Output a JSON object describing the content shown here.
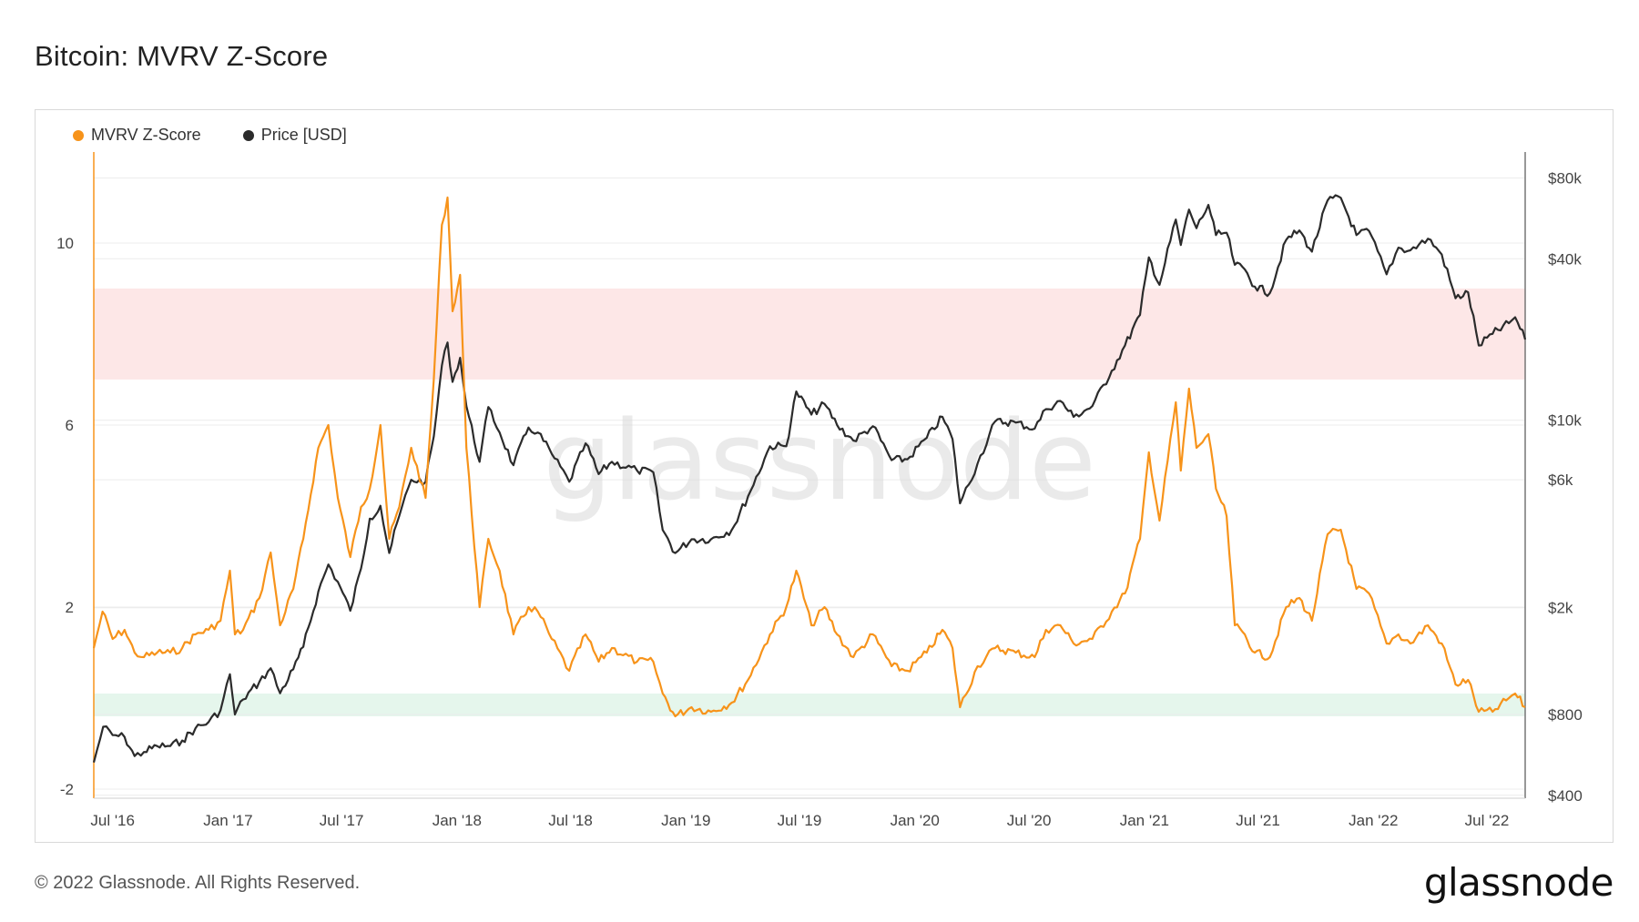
{
  "page": {
    "title": "Bitcoin: MVRV Z-Score",
    "copyright": "© 2022 Glassnode. All Rights Reserved.",
    "brand": "glassnode",
    "watermark": "glassnode"
  },
  "colors": {
    "mvrv": "#f7931a",
    "price": "#2b2b2b",
    "red_band": "#fde7e7",
    "green_band": "#e5f6ec",
    "grid": "#ececec"
  },
  "chart_data": {
    "type": "line",
    "title": "Bitcoin: MVRV Z-Score",
    "legend": {
      "placement": "top-left"
    },
    "grid": true,
    "x_range": [
      "2016-06-01",
      "2022-08-31"
    ],
    "x_ticks": [
      {
        "date": "2016-07-01",
        "label": "Jul '16"
      },
      {
        "date": "2017-01-01",
        "label": "Jan '17"
      },
      {
        "date": "2017-07-01",
        "label": "Jul '17"
      },
      {
        "date": "2018-01-01",
        "label": "Jan '18"
      },
      {
        "date": "2018-07-01",
        "label": "Jul '18"
      },
      {
        "date": "2019-01-01",
        "label": "Jan '19"
      },
      {
        "date": "2019-07-01",
        "label": "Jul '19"
      },
      {
        "date": "2020-01-01",
        "label": "Jan '20"
      },
      {
        "date": "2020-07-01",
        "label": "Jul '20"
      },
      {
        "date": "2021-01-01",
        "label": "Jan '21"
      },
      {
        "date": "2021-07-01",
        "label": "Jul '21"
      },
      {
        "date": "2022-01-01",
        "label": "Jan '22"
      },
      {
        "date": "2022-07-01",
        "label": "Jul '22"
      }
    ],
    "y_left": {
      "range": [
        -2.2,
        12
      ],
      "ticks": [
        {
          "v": -2,
          "label": "-2"
        },
        {
          "v": 2,
          "label": "2"
        },
        {
          "v": 6,
          "label": "6"
        },
        {
          "v": 10,
          "label": "10"
        }
      ]
    },
    "y_right": {
      "scale": "log",
      "range": [
        390,
        100000
      ],
      "ticks": [
        {
          "v": 400,
          "label": "$400"
        },
        {
          "v": 800,
          "label": "$800"
        },
        {
          "v": 2000,
          "label": "$2k"
        },
        {
          "v": 6000,
          "label": "$6k"
        },
        {
          "v": 10000,
          "label": "$10k"
        },
        {
          "v": 40000,
          "label": "$40k"
        },
        {
          "v": 80000,
          "label": "$80k"
        }
      ]
    },
    "bands": [
      {
        "axis": "left",
        "from": 7,
        "to": 9
      },
      {
        "axis": "left",
        "from": -0.4,
        "to": 0.1
      }
    ],
    "series": [
      {
        "name": "MVRV Z-Score",
        "axis": "left",
        "color": "#f7931a",
        "points": [
          [
            "2016-06-01",
            1.1
          ],
          [
            "2016-06-15",
            1.9
          ],
          [
            "2016-07-01",
            1.3
          ],
          [
            "2016-07-20",
            1.5
          ],
          [
            "2016-08-05",
            1.0
          ],
          [
            "2016-08-20",
            0.9
          ],
          [
            "2016-09-10",
            1.0
          ],
          [
            "2016-10-01",
            1.0
          ],
          [
            "2016-10-20",
            1.1
          ],
          [
            "2016-11-10",
            1.4
          ],
          [
            "2016-12-01",
            1.5
          ],
          [
            "2016-12-20",
            1.7
          ],
          [
            "2017-01-04",
            2.8
          ],
          [
            "2017-01-12",
            1.4
          ],
          [
            "2017-01-25",
            1.5
          ],
          [
            "2017-02-20",
            2.2
          ],
          [
            "2017-03-10",
            3.2
          ],
          [
            "2017-03-25",
            1.6
          ],
          [
            "2017-04-15",
            2.4
          ],
          [
            "2017-05-01",
            3.5
          ],
          [
            "2017-05-25",
            5.5
          ],
          [
            "2017-06-10",
            6.0
          ],
          [
            "2017-06-25",
            4.4
          ],
          [
            "2017-07-15",
            3.1
          ],
          [
            "2017-08-01",
            4.2
          ],
          [
            "2017-08-15",
            4.6
          ],
          [
            "2017-09-01",
            6.0
          ],
          [
            "2017-09-15",
            3.5
          ],
          [
            "2017-10-01",
            4.2
          ],
          [
            "2017-10-20",
            5.5
          ],
          [
            "2017-11-12",
            4.4
          ],
          [
            "2017-11-25",
            7.0
          ],
          [
            "2017-12-08",
            10.4
          ],
          [
            "2017-12-17",
            11.0
          ],
          [
            "2017-12-25",
            8.5
          ],
          [
            "2018-01-06",
            9.3
          ],
          [
            "2018-01-16",
            5.5
          ],
          [
            "2018-02-06",
            2.0
          ],
          [
            "2018-02-20",
            3.5
          ],
          [
            "2018-03-10",
            2.8
          ],
          [
            "2018-04-01",
            1.4
          ],
          [
            "2018-04-25",
            2.0
          ],
          [
            "2018-05-10",
            1.9
          ],
          [
            "2018-06-01",
            1.3
          ],
          [
            "2018-06-29",
            0.6
          ],
          [
            "2018-07-25",
            1.4
          ],
          [
            "2018-08-15",
            0.8
          ],
          [
            "2018-09-05",
            1.1
          ],
          [
            "2018-10-15",
            0.8
          ],
          [
            "2018-11-10",
            0.8
          ],
          [
            "2018-11-25",
            0.1
          ],
          [
            "2018-12-15",
            -0.4
          ],
          [
            "2019-01-10",
            -0.2
          ],
          [
            "2019-02-10",
            -0.3
          ],
          [
            "2019-03-15",
            -0.1
          ],
          [
            "2019-04-10",
            0.4
          ],
          [
            "2019-05-15",
            1.4
          ],
          [
            "2019-06-10",
            2.0
          ],
          [
            "2019-06-26",
            2.8
          ],
          [
            "2019-07-20",
            1.6
          ],
          [
            "2019-08-10",
            2.0
          ],
          [
            "2019-08-30",
            1.4
          ],
          [
            "2019-09-25",
            0.9
          ],
          [
            "2019-10-26",
            1.4
          ],
          [
            "2019-11-25",
            0.7
          ],
          [
            "2019-12-20",
            0.6
          ],
          [
            "2020-01-20",
            1.0
          ],
          [
            "2020-02-14",
            1.5
          ],
          [
            "2020-03-01",
            1.1
          ],
          [
            "2020-03-13",
            -0.2
          ],
          [
            "2020-04-10",
            0.7
          ],
          [
            "2020-05-08",
            1.1
          ],
          [
            "2020-06-10",
            1.0
          ],
          [
            "2020-07-10",
            0.9
          ],
          [
            "2020-07-28",
            1.5
          ],
          [
            "2020-08-20",
            1.6
          ],
          [
            "2020-09-10",
            1.2
          ],
          [
            "2020-10-10",
            1.3
          ],
          [
            "2020-11-10",
            1.9
          ],
          [
            "2020-12-01",
            2.3
          ],
          [
            "2020-12-25",
            3.5
          ],
          [
            "2021-01-08",
            5.4
          ],
          [
            "2021-01-25",
            3.9
          ],
          [
            "2021-02-20",
            6.5
          ],
          [
            "2021-02-28",
            5.0
          ],
          [
            "2021-03-13",
            6.8
          ],
          [
            "2021-03-25",
            5.5
          ],
          [
            "2021-04-13",
            5.8
          ],
          [
            "2021-04-25",
            4.6
          ],
          [
            "2021-05-12",
            4.0
          ],
          [
            "2021-05-25",
            1.6
          ],
          [
            "2021-06-10",
            1.4
          ],
          [
            "2021-06-26",
            1.0
          ],
          [
            "2021-07-20",
            0.9
          ],
          [
            "2021-08-15",
            2.0
          ],
          [
            "2021-09-05",
            2.2
          ],
          [
            "2021-09-25",
            1.7
          ],
          [
            "2021-10-20",
            3.6
          ],
          [
            "2021-11-10",
            3.7
          ],
          [
            "2021-12-05",
            2.4
          ],
          [
            "2021-12-25",
            2.3
          ],
          [
            "2022-01-22",
            1.2
          ],
          [
            "2022-02-10",
            1.4
          ],
          [
            "2022-03-01",
            1.2
          ],
          [
            "2022-03-29",
            1.6
          ],
          [
            "2022-04-20",
            1.2
          ],
          [
            "2022-05-12",
            0.3
          ],
          [
            "2022-06-01",
            0.4
          ],
          [
            "2022-06-18",
            -0.3
          ],
          [
            "2022-07-10",
            -0.3
          ],
          [
            "2022-08-05",
            0.0
          ],
          [
            "2022-08-15",
            0.1
          ],
          [
            "2022-08-31",
            -0.2
          ]
        ]
      },
      {
        "name": "Price [USD]",
        "axis": "right",
        "color": "#2b2b2b",
        "points": [
          [
            "2016-06-01",
            530
          ],
          [
            "2016-06-16",
            720
          ],
          [
            "2016-07-01",
            670
          ],
          [
            "2016-07-20",
            660
          ],
          [
            "2016-08-05",
            560
          ],
          [
            "2016-08-20",
            580
          ],
          [
            "2016-09-10",
            610
          ],
          [
            "2016-10-01",
            610
          ],
          [
            "2016-10-20",
            640
          ],
          [
            "2016-11-10",
            710
          ],
          [
            "2016-12-01",
            750
          ],
          [
            "2016-12-20",
            830
          ],
          [
            "2017-01-04",
            1130
          ],
          [
            "2017-01-12",
            800
          ],
          [
            "2017-01-25",
            910
          ],
          [
            "2017-02-20",
            1060
          ],
          [
            "2017-03-10",
            1190
          ],
          [
            "2017-03-25",
            960
          ],
          [
            "2017-04-15",
            1180
          ],
          [
            "2017-05-01",
            1430
          ],
          [
            "2017-05-25",
            2300
          ],
          [
            "2017-06-10",
            2900
          ],
          [
            "2017-06-25",
            2500
          ],
          [
            "2017-07-15",
            1950
          ],
          [
            "2017-08-01",
            2800
          ],
          [
            "2017-08-15",
            4300
          ],
          [
            "2017-09-01",
            4800
          ],
          [
            "2017-09-15",
            3200
          ],
          [
            "2017-10-01",
            4400
          ],
          [
            "2017-10-20",
            6000
          ],
          [
            "2017-11-12",
            5900
          ],
          [
            "2017-11-25",
            8700
          ],
          [
            "2017-12-08",
            16000
          ],
          [
            "2017-12-17",
            19500
          ],
          [
            "2017-12-25",
            13900
          ],
          [
            "2018-01-06",
            17100
          ],
          [
            "2018-01-16",
            11300
          ],
          [
            "2018-02-06",
            7000
          ],
          [
            "2018-02-20",
            11200
          ],
          [
            "2018-03-10",
            9000
          ],
          [
            "2018-04-01",
            6800
          ],
          [
            "2018-04-25",
            9400
          ],
          [
            "2018-05-10",
            9000
          ],
          [
            "2018-06-01",
            7500
          ],
          [
            "2018-06-29",
            5900
          ],
          [
            "2018-07-25",
            8200
          ],
          [
            "2018-08-15",
            6300
          ],
          [
            "2018-09-05",
            7000
          ],
          [
            "2018-10-15",
            6500
          ],
          [
            "2018-11-10",
            6400
          ],
          [
            "2018-11-25",
            3900
          ],
          [
            "2018-12-15",
            3200
          ],
          [
            "2019-01-10",
            3600
          ],
          [
            "2019-02-10",
            3600
          ],
          [
            "2019-03-15",
            3900
          ],
          [
            "2019-04-10",
            5200
          ],
          [
            "2019-05-15",
            8000
          ],
          [
            "2019-06-10",
            8000
          ],
          [
            "2019-06-26",
            12800
          ],
          [
            "2019-07-20",
            10500
          ],
          [
            "2019-08-10",
            11500
          ],
          [
            "2019-08-30",
            9600
          ],
          [
            "2019-09-25",
            8400
          ],
          [
            "2019-10-26",
            9500
          ],
          [
            "2019-11-25",
            7100
          ],
          [
            "2019-12-20",
            7150
          ],
          [
            "2020-01-20",
            8600
          ],
          [
            "2020-02-14",
            10300
          ],
          [
            "2020-03-01",
            8500
          ],
          [
            "2020-03-13",
            4900
          ],
          [
            "2020-04-10",
            6900
          ],
          [
            "2020-05-08",
            9900
          ],
          [
            "2020-06-10",
            9800
          ],
          [
            "2020-07-10",
            9300
          ],
          [
            "2020-07-28",
            11000
          ],
          [
            "2020-08-20",
            11800
          ],
          [
            "2020-09-10",
            10300
          ],
          [
            "2020-10-10",
            11300
          ],
          [
            "2020-11-10",
            15300
          ],
          [
            "2020-12-01",
            19000
          ],
          [
            "2020-12-25",
            24700
          ],
          [
            "2021-01-08",
            40500
          ],
          [
            "2021-01-25",
            32000
          ],
          [
            "2021-02-20",
            56000
          ],
          [
            "2021-02-28",
            45000
          ],
          [
            "2021-03-13",
            61000
          ],
          [
            "2021-03-25",
            52000
          ],
          [
            "2021-04-13",
            63500
          ],
          [
            "2021-04-25",
            49000
          ],
          [
            "2021-05-12",
            50000
          ],
          [
            "2021-05-25",
            38000
          ],
          [
            "2021-06-10",
            36500
          ],
          [
            "2021-06-26",
            31500
          ],
          [
            "2021-07-20",
            29800
          ],
          [
            "2021-08-15",
            47000
          ],
          [
            "2021-09-05",
            51000
          ],
          [
            "2021-09-25",
            42500
          ],
          [
            "2021-10-20",
            66000
          ],
          [
            "2021-11-10",
            67500
          ],
          [
            "2021-12-05",
            49000
          ],
          [
            "2021-12-25",
            50800
          ],
          [
            "2022-01-22",
            35000
          ],
          [
            "2022-02-10",
            44000
          ],
          [
            "2022-03-01",
            43000
          ],
          [
            "2022-03-29",
            47500
          ],
          [
            "2022-04-20",
            41500
          ],
          [
            "2022-05-12",
            28500
          ],
          [
            "2022-06-01",
            30000
          ],
          [
            "2022-06-18",
            19000
          ],
          [
            "2022-07-10",
            21000
          ],
          [
            "2022-08-05",
            23000
          ],
          [
            "2022-08-15",
            24200
          ],
          [
            "2022-08-31",
            20000
          ]
        ]
      }
    ]
  }
}
